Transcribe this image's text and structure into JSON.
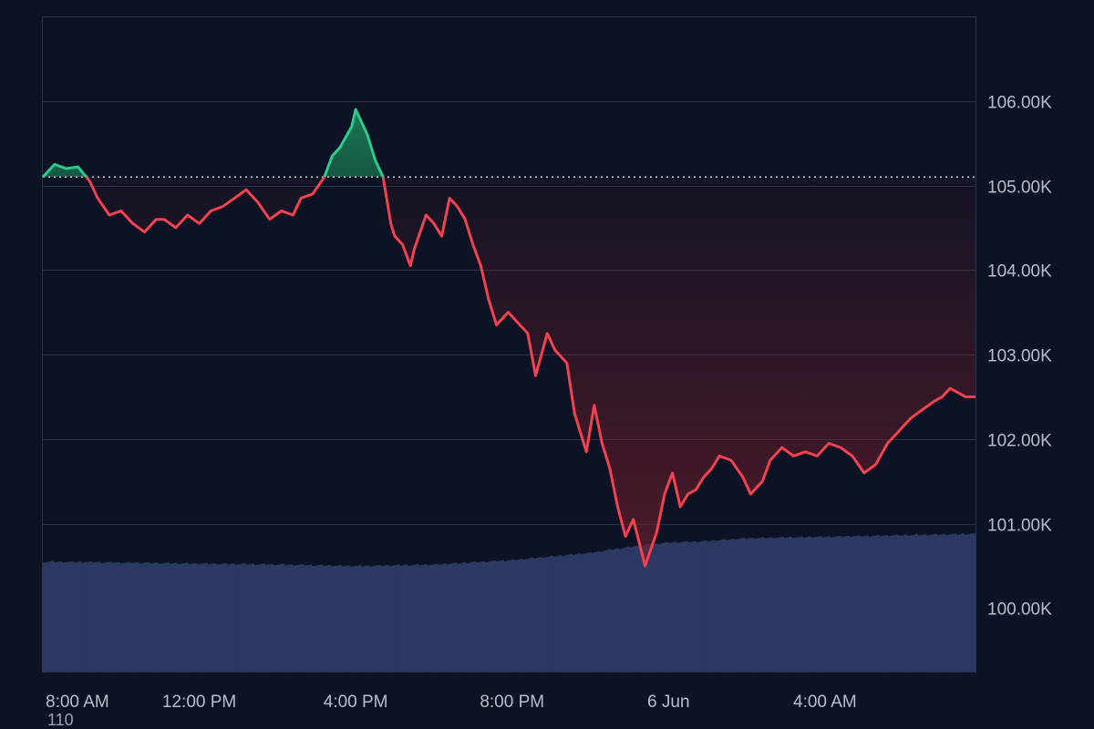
{
  "chart_data": {
    "type": "line",
    "title": "",
    "baseline": 105100,
    "ylim": [
      99250,
      107000
    ],
    "y_ticks": [
      100000,
      101000,
      102000,
      103000,
      104000,
      105000,
      106000
    ],
    "y_tick_labels": [
      "100.00K",
      "101.00K",
      "102.00K",
      "103.00K",
      "104.00K",
      "105.00K",
      "106.00K"
    ],
    "x_tick_labels": [
      "8:00 AM",
      "12:00 PM",
      "4:00 PM",
      "8:00 PM",
      "6 Jun",
      "4:00 AM"
    ],
    "x_tick_hours": [
      0,
      4,
      8,
      12,
      16,
      20
    ],
    "x_range_hours": [
      0,
      23.85
    ],
    "price": {
      "hours": [
        0,
        0.3,
        0.6,
        0.9,
        1.2,
        1.4,
        1.7,
        2.0,
        2.3,
        2.6,
        2.9,
        3.1,
        3.4,
        3.7,
        4.0,
        4.3,
        4.6,
        4.9,
        5.2,
        5.5,
        5.8,
        6.1,
        6.4,
        6.6,
        6.9,
        7.2,
        7.4,
        7.6,
        7.9,
        8.0,
        8.2,
        8.3,
        8.5,
        8.7,
        8.9,
        9.0,
        9.2,
        9.4,
        9.5,
        9.8,
        10.0,
        10.2,
        10.4,
        10.6,
        10.8,
        11.0,
        11.2,
        11.4,
        11.6,
        11.9,
        12.1,
        12.4,
        12.6,
        12.9,
        13.1,
        13.4,
        13.6,
        13.9,
        14.1,
        14.3,
        14.5,
        14.7,
        14.9,
        15.1,
        15.4,
        15.7,
        15.9,
        16.1,
        16.3,
        16.5,
        16.7,
        16.9,
        17.1,
        17.3,
        17.6,
        17.9,
        18.1,
        18.4,
        18.6,
        18.9,
        19.2,
        19.5,
        19.8,
        20.1,
        20.4,
        20.7,
        21.0,
        21.3,
        21.6,
        21.9,
        22.2,
        22.5,
        22.8,
        23.0,
        23.2,
        23.4,
        23.6,
        23.85
      ],
      "values": [
        105100,
        105250,
        105200,
        105220,
        105050,
        104850,
        104650,
        104700,
        104550,
        104450,
        104600,
        104600,
        104500,
        104650,
        104550,
        104700,
        104750,
        104850,
        104950,
        104800,
        104600,
        104700,
        104650,
        104850,
        104900,
        105100,
        105350,
        105450,
        105700,
        105900,
        105700,
        105600,
        105300,
        105100,
        104550,
        104400,
        104300,
        104050,
        104250,
        104650,
        104550,
        104400,
        104850,
        104750,
        104600,
        104300,
        104050,
        103650,
        103350,
        103500,
        103400,
        103250,
        102750,
        103250,
        103050,
        102900,
        102300,
        101850,
        102400,
        101950,
        101650,
        101200,
        100850,
        101050,
        100500,
        100900,
        101350,
        101600,
        101200,
        101350,
        101400,
        101550,
        101650,
        101800,
        101750,
        101550,
        101350,
        101500,
        101750,
        101900,
        101800,
        101850,
        101800,
        101950,
        101900,
        101800,
        101600,
        101700,
        101950,
        102100,
        102250,
        102350,
        102450,
        102500,
        102600,
        102550,
        102500,
        102500
      ]
    },
    "volume": {
      "axis_label": "110",
      "range": [
        0,
        110
      ],
      "hours": [
        0,
        3,
        6,
        8,
        10,
        12,
        14,
        15,
        16,
        17,
        18,
        20,
        22,
        23.85
      ],
      "values": [
        75,
        74,
        73,
        72,
        73,
        76,
        81,
        85,
        88,
        89,
        91,
        92,
        93,
        94
      ]
    },
    "colors": {
      "up_line": "#2ecc8a",
      "down_line": "#f2414f",
      "up_fill": "#1d8a5c",
      "down_fill": "#7a1f2c",
      "volume": "#2c3962",
      "grid": "#2b3346",
      "baseline": "#c9ccd4"
    }
  }
}
